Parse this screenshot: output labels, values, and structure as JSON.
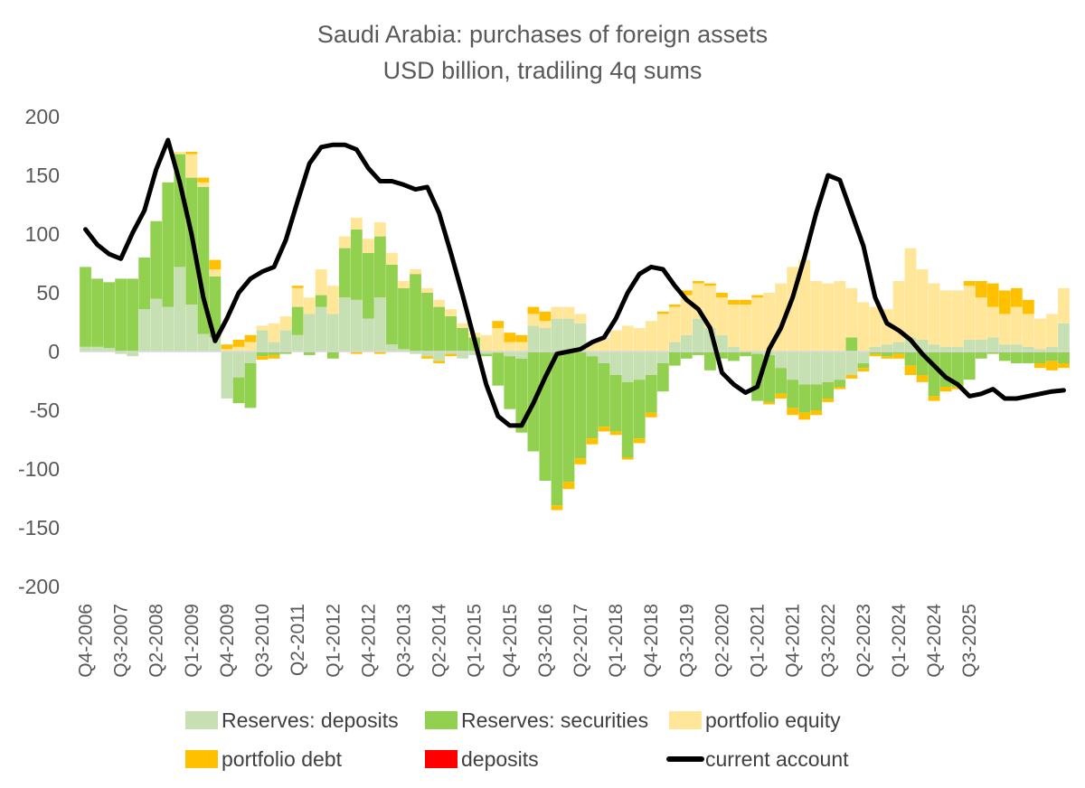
{
  "chart_data": {
    "type": "bar",
    "title": "Saudi Arabia: purchases of foreign assets",
    "subtitle": "USD billion, tradiling 4q sums",
    "xlabel": "",
    "ylabel": "",
    "ylim": [
      -200,
      200
    ],
    "yticks": [
      200,
      150,
      100,
      50,
      0,
      -50,
      -100,
      -150,
      -200
    ],
    "grid": false,
    "legend_position": "bottom",
    "stacked": true,
    "x_tick_labels": [
      "Q4-2006",
      "Q3-2007",
      "Q2-2008",
      "Q1-2009",
      "Q4-2009",
      "Q3-2010",
      "Q2-2011",
      "Q1-2012",
      "Q4-2012",
      "Q3-2013",
      "Q2-2014",
      "Q1-2015",
      "Q4-2015",
      "Q3-2016",
      "Q2-2017",
      "Q1-2018",
      "Q4-2018",
      "Q3-2019",
      "Q2-2020",
      "Q1-2021",
      "Q4-2021",
      "Q3-2022",
      "Q2-2023",
      "Q1-2024",
      "Q4-2024",
      "Q3-2025"
    ],
    "label_every": 3,
    "series": [
      {
        "name": "Reserves: deposits",
        "kind": "bar",
        "color": "#C6E0B4",
        "values": [
          4,
          4,
          3,
          -2,
          -4,
          36,
          45,
          38,
          72,
          40,
          15,
          12,
          -40,
          -22,
          -10,
          18,
          8,
          18,
          14,
          32,
          38,
          32,
          46,
          44,
          28,
          46,
          6,
          2,
          -2,
          -4,
          -8,
          -2,
          -6,
          -3,
          -2,
          -1,
          -4,
          -6,
          22,
          20,
          28,
          28,
          24,
          -4,
          -10,
          -20,
          -26,
          -24,
          -20,
          -10,
          8,
          14,
          28,
          20,
          14,
          4,
          0,
          -2,
          -3,
          -14,
          -24,
          -28,
          -28,
          -26,
          -24,
          -20,
          -10,
          4,
          6,
          8,
          12,
          10,
          6,
          4,
          4,
          10,
          10,
          12,
          6,
          6,
          4,
          2,
          4,
          24
        ]
      },
      {
        "name": "Reserves: securities",
        "kind": "bar",
        "color": "#92D050",
        "values": [
          68,
          58,
          56,
          62,
          62,
          44,
          66,
          106,
          96,
          108,
          125,
          52,
          0,
          -22,
          -38,
          -4,
          -3,
          -2,
          24,
          -3,
          10,
          -6,
          42,
          60,
          56,
          52,
          68,
          52,
          66,
          50,
          38,
          30,
          20,
          12,
          -2,
          -28,
          -45,
          -63,
          -85,
          -110,
          -131,
          -111,
          -91,
          -70,
          -54,
          -48,
          -64,
          -50,
          -32,
          -24,
          -12,
          -6,
          -3,
          -16,
          -6,
          -8,
          -4,
          -40,
          -40,
          -22,
          -24,
          -24,
          -22,
          -14,
          -6,
          12,
          -4,
          -2,
          -4,
          -2,
          -12,
          -20,
          -38,
          -30,
          -30,
          -24,
          -6,
          -2,
          -8,
          -10,
          -10,
          -10,
          -8,
          -10
        ]
      },
      {
        "name": "portfolio equity",
        "kind": "bar",
        "color": "#FFE699",
        "values": [
          0,
          0,
          0,
          0,
          0,
          0,
          0,
          0,
          2,
          20,
          4,
          6,
          2,
          4,
          8,
          4,
          16,
          12,
          16,
          14,
          22,
          24,
          10,
          10,
          12,
          12,
          10,
          6,
          4,
          4,
          6,
          6,
          4,
          4,
          14,
          20,
          8,
          8,
          10,
          6,
          10,
          10,
          8,
          8,
          12,
          18,
          22,
          20,
          26,
          32,
          30,
          34,
          30,
          36,
          32,
          36,
          40,
          46,
          50,
          58,
          72,
          78,
          60,
          58,
          60,
          42,
          42,
          34,
          30,
          52,
          76,
          60,
          52,
          48,
          48,
          46,
          36,
          26,
          26,
          32,
          28,
          26,
          28,
          30
        ]
      },
      {
        "name": "portfolio debt",
        "kind": "bar",
        "color": "#FFC000",
        "values": [
          0,
          0,
          0,
          0,
          0,
          0,
          0,
          0,
          0,
          2,
          4,
          8,
          4,
          6,
          6,
          -3,
          -3,
          0,
          2,
          0,
          0,
          0,
          0,
          -2,
          0,
          -2,
          0,
          0,
          0,
          -2,
          -2,
          -2,
          0,
          0,
          0,
          6,
          8,
          6,
          6,
          8,
          -4,
          -6,
          -5,
          -5,
          -4,
          -3,
          -2,
          -4,
          -4,
          2,
          2,
          4,
          2,
          2,
          4,
          4,
          4,
          2,
          -2,
          -4,
          -6,
          -6,
          -4,
          -3,
          -2,
          -3,
          -3,
          -2,
          -2,
          -4,
          -8,
          -6,
          -4,
          -4,
          -2,
          4,
          14,
          20,
          20,
          16,
          12,
          -4,
          -8,
          -4
        ]
      },
      {
        "name": "deposits",
        "kind": "bar",
        "color": "#FF0000",
        "values": [
          0,
          0,
          0,
          0,
          0,
          0,
          0,
          0,
          0,
          0,
          0,
          0,
          0,
          0,
          0,
          0,
          0,
          0,
          0,
          0,
          0,
          0,
          0,
          0,
          0,
          0,
          0,
          0,
          0,
          0,
          0,
          0,
          0,
          0,
          0,
          0,
          0,
          0,
          0,
          0,
          0,
          0,
          0,
          0,
          0,
          0,
          0,
          0,
          0,
          0,
          0,
          0,
          0,
          0,
          0,
          0,
          0,
          0,
          0,
          0,
          0,
          0,
          0,
          0,
          0,
          0,
          0,
          0,
          0,
          0,
          0,
          0,
          0,
          0,
          0,
          0,
          0,
          0,
          0,
          0,
          0,
          0,
          0,
          0
        ]
      },
      {
        "name": "current account",
        "kind": "line",
        "color": "#000000",
        "values": [
          104,
          91,
          83,
          79,
          101,
          120,
          155,
          180,
          144,
          100,
          46,
          9,
          28,
          50,
          62,
          68,
          72,
          95,
          128,
          160,
          174,
          176,
          176,
          172,
          156,
          145,
          145,
          142,
          138,
          140,
          118,
          84,
          48,
          10,
          -28,
          -55,
          -63,
          -63,
          -44,
          -22,
          -2,
          0,
          2,
          8,
          12,
          28,
          50,
          66,
          72,
          70,
          56,
          44,
          36,
          20,
          -18,
          -28,
          -35,
          -30,
          2,
          20,
          46,
          80,
          118,
          150,
          146,
          118,
          90,
          46,
          24,
          18,
          10,
          -2,
          -12,
          -22,
          -28,
          -38,
          -36,
          -32,
          -40,
          -40,
          -38,
          -36,
          -34,
          -33
        ]
      }
    ],
    "deposits_segments": [
      [
        1,
        0,
        0
      ],
      [
        2,
        0,
        0
      ],
      [
        3,
        0,
        0
      ],
      [
        4,
        0,
        0
      ],
      [
        5,
        0,
        0
      ],
      [
        6,
        0,
        0
      ],
      [
        7,
        0,
        0
      ],
      [
        8,
        0,
        0
      ],
      [
        9,
        0,
        0
      ],
      [
        10,
        0,
        0
      ],
      [
        11,
        0,
        0
      ],
      [
        12,
        0,
        0
      ]
    ]
  },
  "legend": {
    "items": [
      {
        "label": "Reserves: deposits",
        "color": "#C6E0B4",
        "kind": "box"
      },
      {
        "label": "Reserves: securities",
        "color": "#92D050",
        "kind": "box"
      },
      {
        "label": "portfolio equity",
        "color": "#FFE699",
        "kind": "box"
      },
      {
        "label": "portfolio debt",
        "color": "#FFC000",
        "kind": "box"
      },
      {
        "label": "deposits",
        "color": "#FF0000",
        "kind": "box"
      },
      {
        "label": "current account",
        "color": "#000000",
        "kind": "line"
      }
    ]
  }
}
